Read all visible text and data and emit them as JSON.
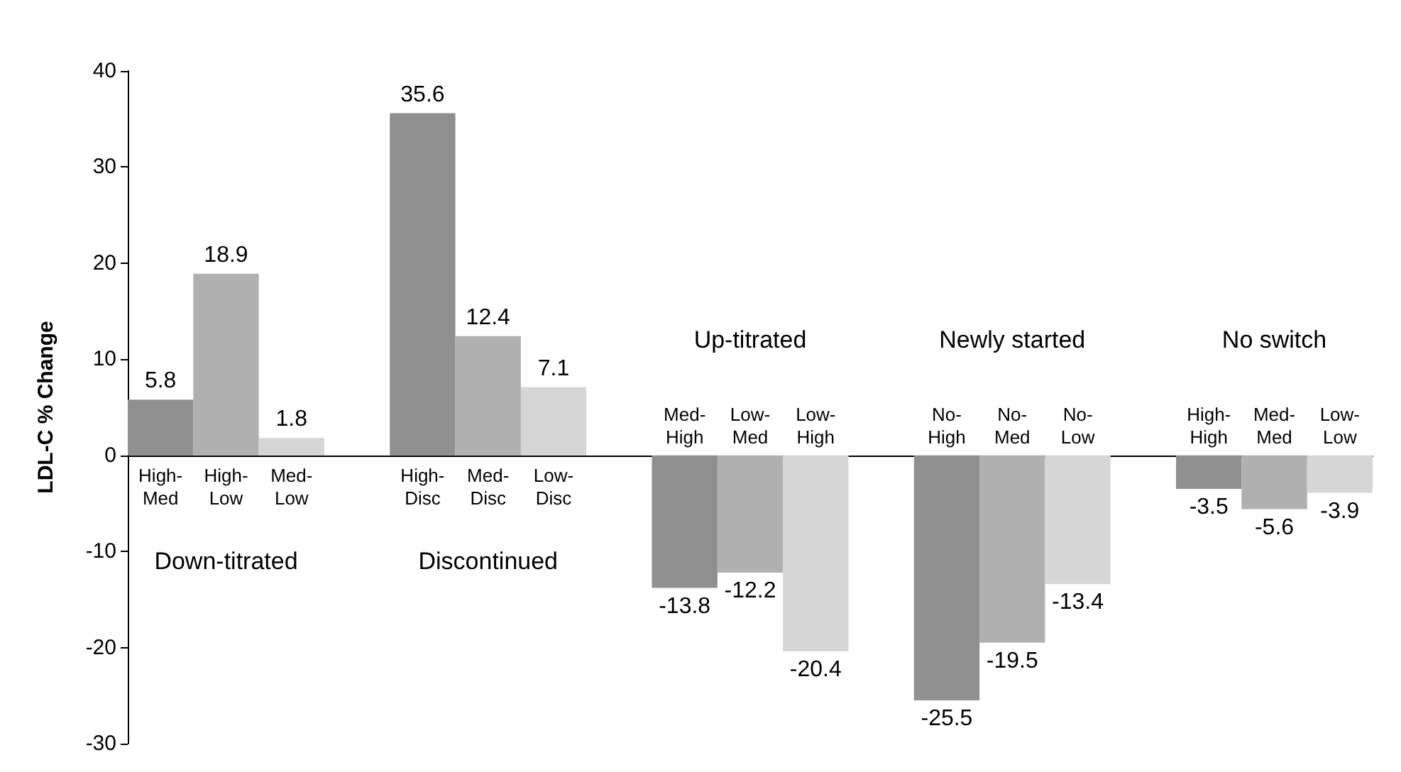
{
  "chart_data": {
    "type": "bar",
    "ylabel": "LDL-C % Change",
    "categories": [
      "High-Med",
      "High-Low",
      "Med-Low",
      null,
      "High-Disc",
      "Med-Disc",
      "Low-Disc",
      null,
      "Med-High",
      "Low-Med",
      "Low-High",
      null,
      "No-High",
      "No-Med",
      "No-Low",
      null,
      "High-High",
      "Med-Med",
      "Low-Low"
    ],
    "values": [
      5.8,
      18.9,
      1.8,
      null,
      35.6,
      12.4,
      7.1,
      null,
      -13.8,
      -12.2,
      -20.4,
      null,
      -25.5,
      -19.5,
      -13.4,
      null,
      -3.5,
      -5.6,
      -3.9
    ],
    "colors": [
      "#8f8f8f",
      "#b0b0b0",
      "#d6d6d6",
      null,
      "#8f8f8f",
      "#b0b0b0",
      "#d6d6d6",
      null,
      "#8f8f8f",
      "#b0b0b0",
      "#d6d6d6",
      null,
      "#8f8f8f",
      "#b0b0b0",
      "#d6d6d6",
      null,
      "#8f8f8f",
      "#b0b0b0",
      "#d6d6d6"
    ],
    "annotations": [
      "Down-titrated",
      "Discontinued",
      "Up-titrated",
      "Newly started",
      "No switch"
    ],
    "ylim": [
      -30,
      40
    ],
    "yticks": [
      -30,
      -20,
      -10,
      0,
      10,
      20,
      30,
      40
    ],
    "data_labels": true
  }
}
